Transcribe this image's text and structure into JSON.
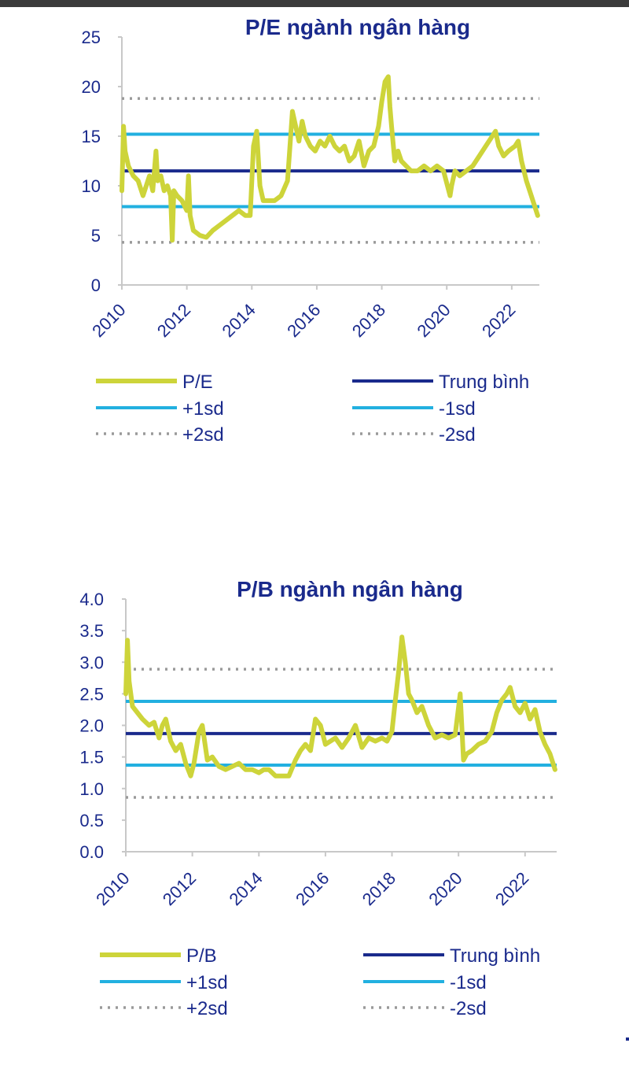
{
  "colors": {
    "series": "#cdd43a",
    "mean": "#1a2a8c",
    "sd1": "#22b0e0",
    "sd2": "#9a9a9a",
    "text": "#1a2a8c",
    "axis": "#c8c8c8"
  },
  "chart_data": [
    {
      "type": "line",
      "title": "P/E ngành ngân hàng",
      "xlabel": "",
      "ylabel": "",
      "xlim": [
        2010.0,
        2022.85
      ],
      "ylim": [
        0,
        25
      ],
      "y_ticks": [
        "0",
        "5",
        "10",
        "15",
        "20",
        "25"
      ],
      "x_ticks": [
        "2010",
        "2012",
        "2014",
        "2016",
        "2018",
        "2020",
        "2022"
      ],
      "grid": false,
      "legend_placement": "bottom",
      "legend": [
        "P/E",
        "Trung bình",
        "+1sd",
        "-1sd",
        "+2sd",
        "-2sd"
      ],
      "series": [
        {
          "name": "P/E",
          "x": [
            2010.0,
            2010.05,
            2010.1,
            2010.2,
            2010.35,
            2010.5,
            2010.65,
            2010.75,
            2010.85,
            2010.95,
            2011.05,
            2011.1,
            2011.2,
            2011.3,
            2011.4,
            2011.5,
            2011.55,
            2011.6,
            2011.7,
            2011.85,
            2012.0,
            2012.05,
            2012.1,
            2012.2,
            2012.4,
            2012.6,
            2012.8,
            2013.0,
            2013.2,
            2013.4,
            2013.6,
            2013.8,
            2013.95,
            2014.05,
            2014.15,
            2014.25,
            2014.35,
            2014.5,
            2014.7,
            2014.9,
            2015.1,
            2015.25,
            2015.35,
            2015.45,
            2015.55,
            2015.65,
            2015.8,
            2015.95,
            2016.1,
            2016.25,
            2016.4,
            2016.55,
            2016.7,
            2016.85,
            2017.0,
            2017.15,
            2017.3,
            2017.45,
            2017.6,
            2017.75,
            2017.9,
            2018.0,
            2018.1,
            2018.2,
            2018.25,
            2018.3,
            2018.4,
            2018.5,
            2018.6,
            2018.75,
            2018.9,
            2019.1,
            2019.3,
            2019.5,
            2019.7,
            2019.9,
            2020.1,
            2020.15,
            2020.25,
            2020.4,
            2020.6,
            2020.8,
            2021.0,
            2021.2,
            2021.4,
            2021.5,
            2021.6,
            2021.75,
            2021.9,
            2022.1,
            2022.2,
            2022.3,
            2022.45,
            2022.6,
            2022.7,
            2022.8
          ],
          "values": [
            9.5,
            16.0,
            13.5,
            12.0,
            11.0,
            10.5,
            9.0,
            10.0,
            11.0,
            9.5,
            13.5,
            10.5,
            11.0,
            9.5,
            10.0,
            9.0,
            4.5,
            9.5,
            9.0,
            8.5,
            7.5,
            11.0,
            7.0,
            5.5,
            5.0,
            4.8,
            5.5,
            6.0,
            6.5,
            7.0,
            7.5,
            7.0,
            7.0,
            14.0,
            15.5,
            10.0,
            8.5,
            8.5,
            8.5,
            9.0,
            10.5,
            17.5,
            16.0,
            14.5,
            16.5,
            15.0,
            14.0,
            13.5,
            14.5,
            14.0,
            15.0,
            14.0,
            13.5,
            14.0,
            12.5,
            13.0,
            14.5,
            12.0,
            13.5,
            14.0,
            16.0,
            18.5,
            20.5,
            21.0,
            18.0,
            16.0,
            12.5,
            13.5,
            12.5,
            12.0,
            11.5,
            11.5,
            12.0,
            11.5,
            12.0,
            11.5,
            9.0,
            10.0,
            11.5,
            11.0,
            11.5,
            12.0,
            13.0,
            14.0,
            15.0,
            15.5,
            14.0,
            13.0,
            13.5,
            14.0,
            14.5,
            12.5,
            10.5,
            9.0,
            8.0,
            7.0
          ]
        }
      ],
      "reference_lines": [
        {
          "name": "Trung bình",
          "value": 11.5,
          "style": "mean"
        },
        {
          "name": "+1sd",
          "value": 15.2,
          "style": "sd1"
        },
        {
          "name": "-1sd",
          "value": 7.9,
          "style": "sd1"
        },
        {
          "name": "+2sd",
          "value": 18.8,
          "style": "sd2"
        },
        {
          "name": "-2sd",
          "value": 4.3,
          "style": "sd2"
        }
      ]
    },
    {
      "type": "line",
      "title": "P/B ngành ngân hàng",
      "xlabel": "",
      "ylabel": "",
      "xlim": [
        2010.0,
        2022.95
      ],
      "ylim": [
        0,
        4
      ],
      "y_ticks": [
        "0.0",
        "0.5",
        "1.0",
        "1.5",
        "2.0",
        "2.5",
        "3.0",
        "3.5",
        "4.0"
      ],
      "x_ticks": [
        "2010",
        "2012",
        "2014",
        "2016",
        "2018",
        "2020",
        "2022"
      ],
      "grid": false,
      "legend_placement": "bottom",
      "legend": [
        "P/B",
        "Trung bình",
        "+1sd",
        "-1sd",
        "+2sd",
        "-2sd"
      ],
      "series": [
        {
          "name": "P/B",
          "x": [
            2010.0,
            2010.05,
            2010.1,
            2010.2,
            2010.35,
            2010.5,
            2010.7,
            2010.85,
            2011.0,
            2011.1,
            2011.2,
            2011.35,
            2011.5,
            2011.65,
            2011.8,
            2011.95,
            2012.05,
            2012.2,
            2012.3,
            2012.45,
            2012.6,
            2012.8,
            2013.0,
            2013.2,
            2013.4,
            2013.6,
            2013.8,
            2014.0,
            2014.15,
            2014.3,
            2014.5,
            2014.7,
            2014.9,
            2015.1,
            2015.25,
            2015.4,
            2015.55,
            2015.7,
            2015.85,
            2016.0,
            2016.15,
            2016.3,
            2016.5,
            2016.7,
            2016.9,
            2017.1,
            2017.3,
            2017.5,
            2017.7,
            2017.85,
            2018.0,
            2018.1,
            2018.2,
            2018.3,
            2018.4,
            2018.5,
            2018.6,
            2018.75,
            2018.9,
            2019.1,
            2019.3,
            2019.5,
            2019.7,
            2019.9,
            2020.05,
            2020.15,
            2020.25,
            2020.4,
            2020.6,
            2020.8,
            2021.0,
            2021.15,
            2021.3,
            2021.45,
            2021.55,
            2021.7,
            2021.85,
            2022.0,
            2022.15,
            2022.3,
            2022.45,
            2022.6,
            2022.75,
            2022.9
          ],
          "values": [
            2.5,
            3.35,
            2.7,
            2.3,
            2.2,
            2.1,
            2.0,
            2.05,
            1.8,
            2.0,
            2.1,
            1.75,
            1.6,
            1.7,
            1.4,
            1.2,
            1.4,
            1.9,
            2.0,
            1.45,
            1.5,
            1.35,
            1.3,
            1.35,
            1.4,
            1.3,
            1.3,
            1.25,
            1.3,
            1.3,
            1.2,
            1.2,
            1.2,
            1.45,
            1.6,
            1.7,
            1.6,
            2.1,
            2.0,
            1.7,
            1.75,
            1.8,
            1.65,
            1.8,
            2.0,
            1.65,
            1.8,
            1.75,
            1.8,
            1.75,
            1.9,
            2.4,
            2.85,
            3.4,
            3.0,
            2.5,
            2.4,
            2.2,
            2.3,
            2.0,
            1.8,
            1.85,
            1.8,
            1.85,
            2.5,
            1.45,
            1.55,
            1.6,
            1.7,
            1.75,
            1.9,
            2.2,
            2.4,
            2.5,
            2.6,
            2.3,
            2.2,
            2.35,
            2.1,
            2.25,
            1.9,
            1.7,
            1.55,
            1.3
          ]
        }
      ],
      "reference_lines": [
        {
          "name": "Trung bình",
          "value": 1.87,
          "style": "mean"
        },
        {
          "name": "+1sd",
          "value": 2.38,
          "style": "sd1"
        },
        {
          "name": "-1sd",
          "value": 1.37,
          "style": "sd1"
        },
        {
          "name": "+2sd",
          "value": 2.89,
          "style": "sd2"
        },
        {
          "name": "-2sd",
          "value": 0.86,
          "style": "sd2"
        }
      ]
    }
  ]
}
